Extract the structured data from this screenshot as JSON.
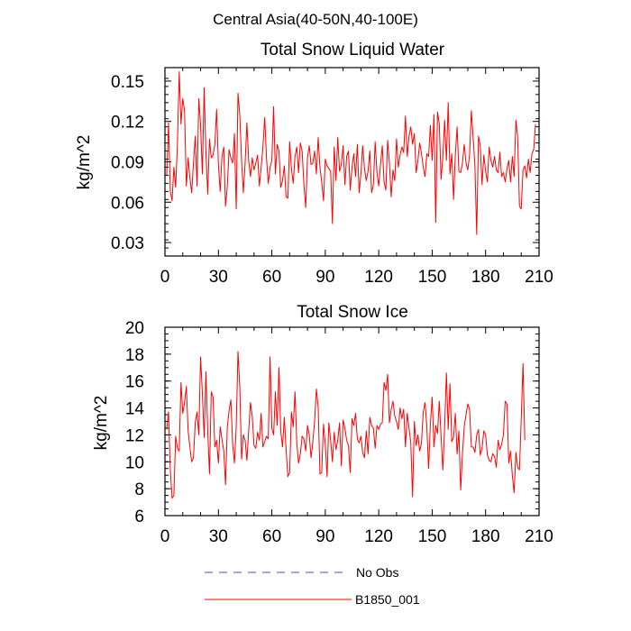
{
  "figure_title": "Central Asia(40-50N,40-100E)",
  "legend": [
    {
      "label": "No Obs",
      "color": "#4444cc",
      "style": "dashed"
    },
    {
      "label": "B1850_001",
      "color": "#ff0000",
      "style": "solid"
    }
  ],
  "chart_data": [
    {
      "type": "line",
      "title": "Total Snow Liquid Water",
      "xlabel": "",
      "ylabel": "kg/m^2",
      "xlim": [
        0,
        210
      ],
      "ylim": [
        0.02,
        0.16
      ],
      "xticks": [
        0,
        30,
        60,
        90,
        120,
        150,
        180,
        210
      ],
      "xtick_labels": [
        "0",
        "30",
        "60",
        "90",
        "120",
        "150",
        "180",
        "210"
      ],
      "yticks": [
        0.03,
        0.06,
        0.09,
        0.12,
        0.15
      ],
      "ytick_labels": [
        "0.03",
        "0.06",
        "0.09",
        "0.12",
        "0.15"
      ],
      "y_minor_step": 0.006,
      "series": [
        {
          "name": "B1850_001",
          "color": "#ff0000",
          "x_start": 1,
          "x_step": 1,
          "values": [
            0.08,
            0.119,
            0.068,
            0.061,
            0.086,
            0.071,
            0.103,
            0.157,
            0.118,
            0.137,
            0.128,
            0.072,
            0.093,
            0.078,
            0.067,
            0.089,
            0.109,
            0.072,
            0.137,
            0.117,
            0.081,
            0.145,
            0.096,
            0.066,
            0.107,
            0.093,
            0.095,
            0.103,
            0.129,
            0.088,
            0.068,
            0.094,
            0.101,
            0.057,
            0.072,
            0.099,
            0.093,
            0.089,
            0.111,
            0.055,
            0.141,
            0.125,
            0.091,
            0.067,
            0.089,
            0.119,
            0.091,
            0.079,
            0.093,
            0.084,
            0.089,
            0.095,
            0.072,
            0.086,
            0.101,
            0.123,
            0.093,
            0.074,
            0.086,
            0.091,
            0.131,
            0.081,
            0.103,
            0.098,
            0.071,
            0.076,
            0.087,
            0.064,
            0.063,
            0.105,
            0.085,
            0.074,
            0.094,
            0.101,
            0.082,
            0.104,
            0.098,
            0.073,
            0.056,
            0.093,
            0.102,
            0.088,
            0.089,
            0.098,
            0.081,
            0.108,
            0.086,
            0.075,
            0.061,
            0.092,
            0.087,
            0.085,
            0.083,
            0.044,
            0.101,
            0.076,
            0.108,
            0.083,
            0.088,
            0.102,
            0.073,
            0.094,
            0.098,
            0.069,
            0.086,
            0.096,
            0.079,
            0.103,
            0.067,
            0.081,
            0.102,
            0.085,
            0.076,
            0.083,
            0.098,
            0.067,
            0.073,
            0.105,
            0.082,
            0.072,
            0.088,
            0.102,
            0.075,
            0.069,
            0.106,
            0.089,
            0.064,
            0.084,
            0.076,
            0.107,
            0.086,
            0.095,
            0.101,
            0.097,
            0.124,
            0.094,
            0.109,
            0.116,
            0.103,
            0.111,
            0.082,
            0.091,
            0.104,
            0.096,
            0.086,
            0.079,
            0.096,
            0.094,
            0.117,
            0.091,
            0.125,
            0.045,
            0.127,
            0.118,
            0.077,
            0.094,
            0.121,
            0.091,
            0.134,
            0.081,
            0.096,
            0.062,
            0.095,
            0.116,
            0.083,
            0.082,
            0.089,
            0.103,
            0.089,
            0.084,
            0.095,
            0.128,
            0.108,
            0.087,
            0.036,
            0.109,
            0.102,
            0.073,
            0.095,
            0.083,
            0.075,
            0.101,
            0.091,
            0.086,
            0.094,
            0.084,
            0.082,
            0.097,
            0.079,
            0.082,
            0.075,
            0.085,
            0.091,
            0.075,
            0.094,
            0.079,
            0.121,
            0.108,
            0.057,
            0.055,
            0.084,
            0.087,
            0.078,
            0.092,
            0.082,
            0.096,
            0.099,
            0.118
          ]
        }
      ]
    },
    {
      "type": "line",
      "title": "Total Snow Ice",
      "xlabel": "",
      "ylabel": "kg/m^2",
      "xlim": [
        0,
        210
      ],
      "ylim": [
        6,
        20
      ],
      "xticks": [
        0,
        30,
        60,
        90,
        120,
        150,
        180,
        210
      ],
      "xtick_labels": [
        "0",
        "30",
        "60",
        "90",
        "120",
        "150",
        "180",
        "210"
      ],
      "yticks": [
        6,
        8,
        10,
        12,
        14,
        16,
        18,
        20
      ],
      "ytick_labels": [
        "6",
        "8",
        "10",
        "12",
        "14",
        "16",
        "18",
        "20"
      ],
      "y_minor_step": 0.5,
      "series": [
        {
          "name": "B1850_001",
          "color": "#ff0000",
          "x_start": 1,
          "x_step": 1,
          "values": [
            12.4,
            13.7,
            9.4,
            7.3,
            7.5,
            11.9,
            11.0,
            10.8,
            15.9,
            13.6,
            14.4,
            15.6,
            12.3,
            11.1,
            10.0,
            10.3,
            12.9,
            13.7,
            12.0,
            17.8,
            15.1,
            11.8,
            16.7,
            12.3,
            9.1,
            15.2,
            14.8,
            11.1,
            11.6,
            9.9,
            12.6,
            11.7,
            10.8,
            8.3,
            12.6,
            13.8,
            14.6,
            11.3,
            9.9,
            12.6,
            18.2,
            15.6,
            10.2,
            12.0,
            11.6,
            10.1,
            12.3,
            14.4,
            13.4,
            11.2,
            11.0,
            12.2,
            11.6,
            13.6,
            11.1,
            11.5,
            11.9,
            11.7,
            17.8,
            12.5,
            12.0,
            15.2,
            12.7,
            17.0,
            12.3,
            11.1,
            13.3,
            10.9,
            8.9,
            9.2,
            13.7,
            12.6,
            15.2,
            11.4,
            9.9,
            10.6,
            11.9,
            11.7,
            10.8,
            12.7,
            12.0,
            10.3,
            11.5,
            13.0,
            15.4,
            14.1,
            9.1,
            9.2,
            12.8,
            11.3,
            8.9,
            12.9,
            11.6,
            10.0,
            12.2,
            10.9,
            11.6,
            12.9,
            9.7,
            13.1,
            12.5,
            11.6,
            11.2,
            9.2,
            13.2,
            12.7,
            13.6,
            11.7,
            11.4,
            11.9,
            10.7,
            10.3,
            12.3,
            10.6,
            13.3,
            12.7,
            12.5,
            11.0,
            12.7,
            12.4,
            12.8,
            12.9,
            15.9,
            15.3,
            16.5,
            12.9,
            13.9,
            14.5,
            13.4,
            13.0,
            12.4,
            14.0,
            13.2,
            13.9,
            11.1,
            13.6,
            12.5,
            11.4,
            7.4,
            13.0,
            11.2,
            12.0,
            10.8,
            11.4,
            13.7,
            14.4,
            12.6,
            9.5,
            12.8,
            14.8,
            11.1,
            12.7,
            12.1,
            14.5,
            11.9,
            9.4,
            12.6,
            16.6,
            12.4,
            15.8,
            11.5,
            11.8,
            13.6,
            10.6,
            12.3,
            7.9,
            10.6,
            12.6,
            13.5,
            14.3,
            13.9,
            11.1,
            11.1,
            10.7,
            12.0,
            12.4,
            10.5,
            11.0,
            12.3,
            12.0,
            10.5,
            10.1,
            10.0,
            10.6,
            10.4,
            9.6,
            11.6,
            10.9,
            11.3,
            12.0,
            14.5,
            14.3,
            9.9,
            10.8,
            9.0,
            7.7,
            10.7,
            9.6,
            9.4,
            13.2,
            17.3,
            11.6
          ]
        }
      ]
    }
  ]
}
